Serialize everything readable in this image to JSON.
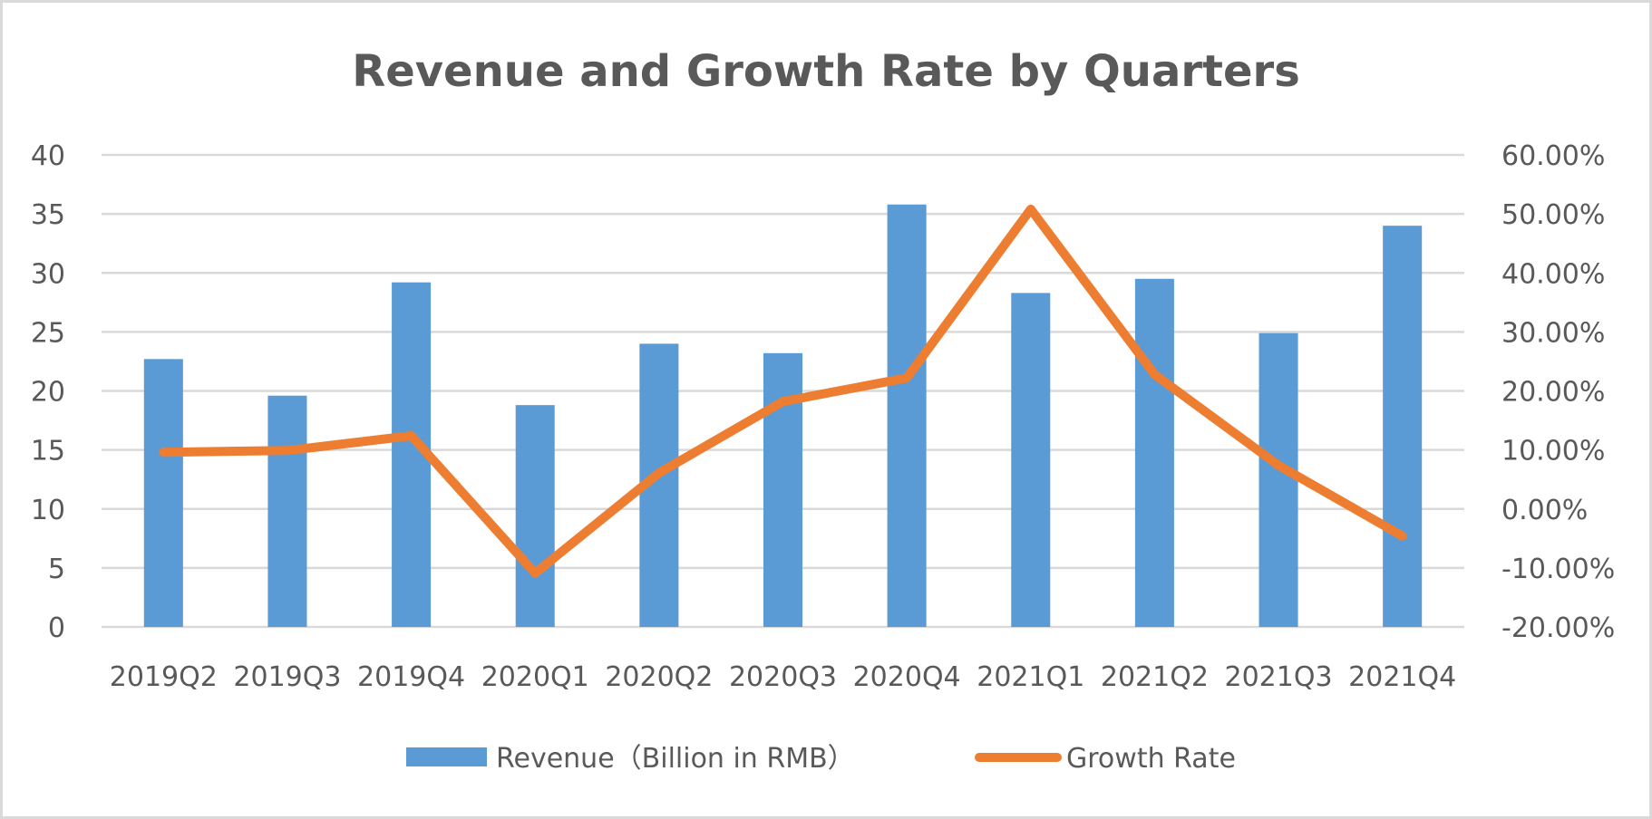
{
  "chart_data": {
    "type": "bar+line",
    "title": "Revenue and Growth Rate by Quarters",
    "categories": [
      "2019Q2",
      "2019Q3",
      "2019Q4",
      "2020Q1",
      "2020Q2",
      "2020Q3",
      "2020Q4",
      "2021Q1",
      "2021Q2",
      "2021Q3",
      "2021Q4"
    ],
    "series": [
      {
        "name": "Revenue（Billion in RMB）",
        "type": "bar",
        "axis": "left",
        "color": "#5b9bd5",
        "values": [
          22.7,
          19.6,
          29.2,
          18.8,
          24.0,
          23.2,
          35.8,
          28.3,
          29.5,
          24.9,
          34.0
        ]
      },
      {
        "name": "Growth Rate",
        "type": "line",
        "axis": "right",
        "color": "#ed7d31",
        "unit": "percent",
        "values": [
          9.6,
          9.9,
          12.4,
          -10.9,
          6.1,
          18.2,
          22.2,
          50.8,
          22.8,
          7.4,
          -4.6
        ]
      }
    ],
    "y_left": {
      "ylim": [
        0,
        40
      ],
      "ticks": [
        0,
        5,
        10,
        15,
        20,
        25,
        30,
        35,
        40
      ],
      "tick_labels": [
        "0",
        "5",
        "10",
        "15",
        "20",
        "25",
        "30",
        "35",
        "40"
      ]
    },
    "y_right": {
      "ylim": [
        -20,
        60
      ],
      "ticks": [
        -20,
        -10,
        0,
        10,
        20,
        30,
        40,
        50,
        60
      ],
      "tick_labels": [
        "-20.00%",
        "-10.00%",
        "0.00%",
        "10.00%",
        "20.00%",
        "30.00%",
        "40.00%",
        "50.00%",
        "60.00%"
      ]
    },
    "xlabel": "",
    "ylabel": "",
    "grid": true,
    "legend_position": "bottom",
    "colors": {
      "gridline": "#d9d9d9",
      "text": "#595959",
      "border": "#d9d9d9"
    }
  }
}
